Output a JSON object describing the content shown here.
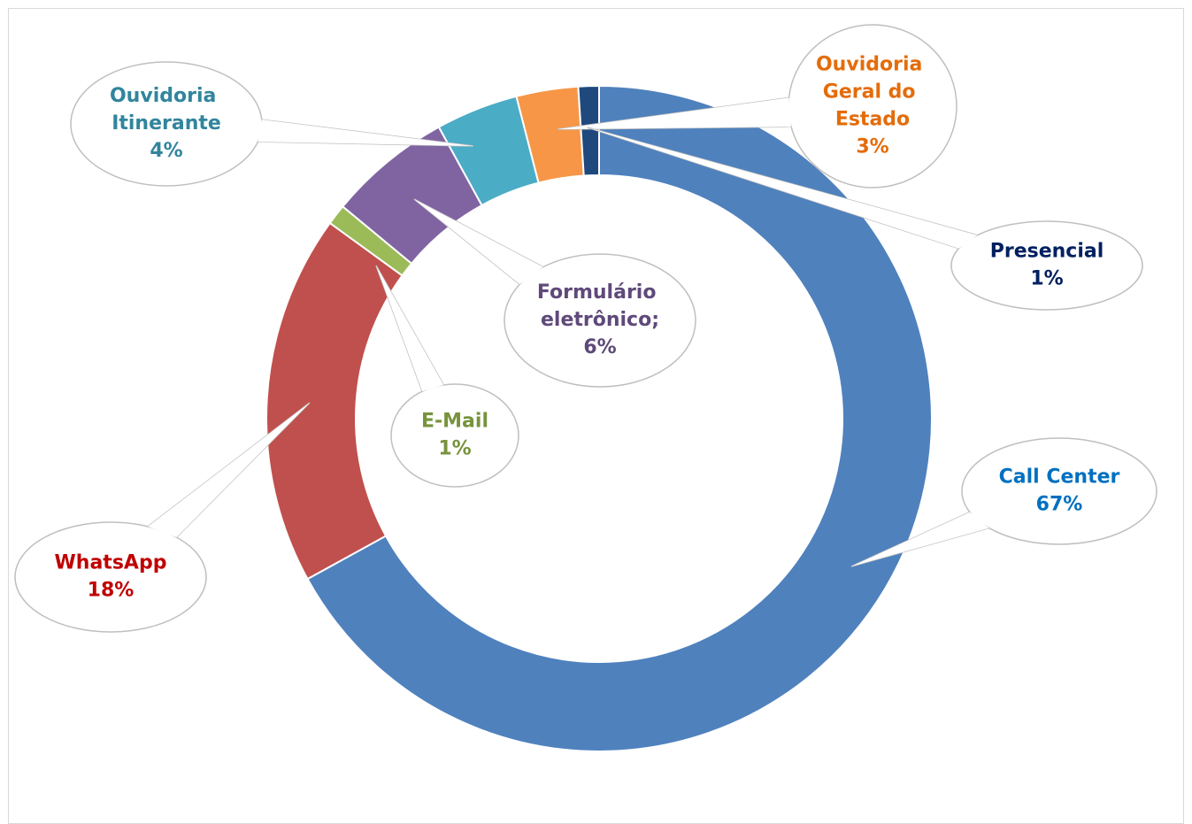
{
  "chart_data": {
    "type": "donut",
    "categories": [
      "Call Center",
      "WhatsApp",
      "E-Mail",
      "Formulário eletrônico;",
      "Ouvidoria Itinerante",
      "Ouvidoria Geral do Estado",
      "Presencial"
    ],
    "values": [
      67,
      18,
      1,
      6,
      4,
      3,
      1
    ],
    "value_labels": [
      "67%",
      "18%",
      "1%",
      "6%",
      "4%",
      "3%",
      "1%"
    ],
    "colors": [
      "#4f81bd",
      "#c0504d",
      "#9bbb59",
      "#8064a2",
      "#4bacc6",
      "#f79646",
      "#1f497d"
    ],
    "label_colors": [
      "#0070c0",
      "#c00000",
      "#77933c",
      "#5f497a",
      "#31859c",
      "#e46c0a",
      "#002060"
    ]
  }
}
